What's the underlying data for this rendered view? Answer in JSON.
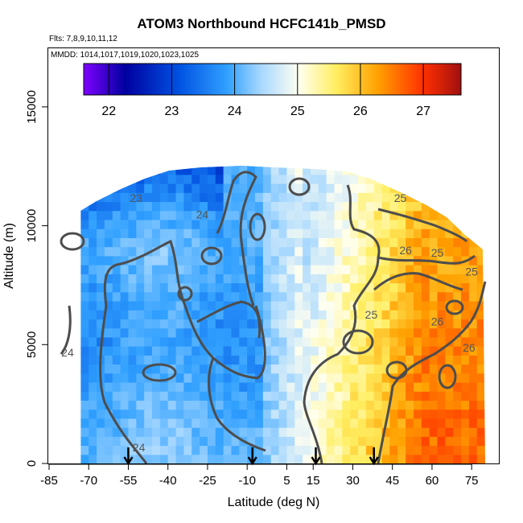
{
  "chart_data": {
    "type": "heatmap",
    "title": "ATOM3 Northbound HCFC141b_PMSD",
    "subtitle_flights": "Flts: 7,8,9,10,11,12",
    "subtitle_dates": "MMDD: 1014,1017,1019,1020,1023,1025",
    "xlabel": "Latitude (deg N)",
    "ylabel": "Altitude (m)",
    "xlim": [
      -85,
      85
    ],
    "ylim": [
      0,
      17500
    ],
    "x_ticks": [
      -85,
      -70,
      -55,
      -40,
      -25,
      -10,
      5,
      15,
      30,
      45,
      60,
      75
    ],
    "x_tick_labels": [
      "-85",
      "-70",
      "-55",
      "-40",
      "-25",
      "-10",
      "5",
      "15",
      "30",
      "45",
      "60",
      "75"
    ],
    "y_ticks": [
      0,
      5000,
      10000,
      15000
    ],
    "y_tick_labels": [
      "0",
      "5000",
      "10000",
      "15000"
    ],
    "colorbar": {
      "min": 21.6,
      "max": 27.6,
      "ticks": [
        22,
        23,
        24,
        25,
        26,
        27
      ],
      "tick_labels": [
        "22",
        "23",
        "24",
        "25",
        "26",
        "27"
      ],
      "colors": [
        "#7f00ff",
        "#0000a0",
        "#0050e0",
        "#30a0ff",
        "#a8d8ff",
        "#fffff0",
        "#ffee60",
        "#ffa000",
        "#ff3000",
        "#a01010"
      ]
    },
    "contour_labels": [
      {
        "text": "23",
        "lat": -52,
        "alt": 11000
      },
      {
        "text": "24",
        "lat": -27,
        "alt": 10300
      },
      {
        "text": "24",
        "lat": -78,
        "alt": 4500
      },
      {
        "text": "24",
        "lat": -51,
        "alt": 500
      },
      {
        "text": "25",
        "lat": 48,
        "alt": 11000
      },
      {
        "text": "26",
        "lat": 50,
        "alt": 8800
      },
      {
        "text": "25",
        "lat": 62,
        "alt": 8700
      },
      {
        "text": "25",
        "lat": 75,
        "alt": 7900
      },
      {
        "text": "25",
        "lat": 37,
        "alt": 6100
      },
      {
        "text": "26",
        "lat": 62,
        "alt": 5800
      },
      {
        "text": "26",
        "lat": 74,
        "alt": 4700
      }
    ],
    "flight_markers_lat": [
      -55,
      -8,
      16,
      38
    ],
    "data_extent": {
      "lat_min": -73,
      "lat_max": 80
    }
  }
}
